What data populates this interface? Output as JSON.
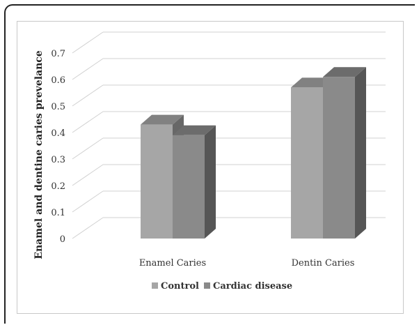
{
  "chart_data": {
    "type": "bar",
    "ylabel": "Enamel and dentine caries prevelance",
    "xlabel": "",
    "categories": [
      "Enamel Caries",
      "Dentin Caries"
    ],
    "ylim": [
      0,
      0.7
    ],
    "yticks": [
      "0",
      "0.1",
      "0.2",
      "0.3",
      "0.4",
      "0.5",
      "0.6",
      "0.7"
    ],
    "grid": true,
    "legend_position": "bottom",
    "series": [
      {
        "name": "Control",
        "values": [
          0.43,
          0.57
        ],
        "color": "#a6a6a6"
      },
      {
        "name": "Cardiac disease",
        "values": [
          0.39,
          0.61
        ],
        "color": "#8a8a8a"
      }
    ]
  }
}
